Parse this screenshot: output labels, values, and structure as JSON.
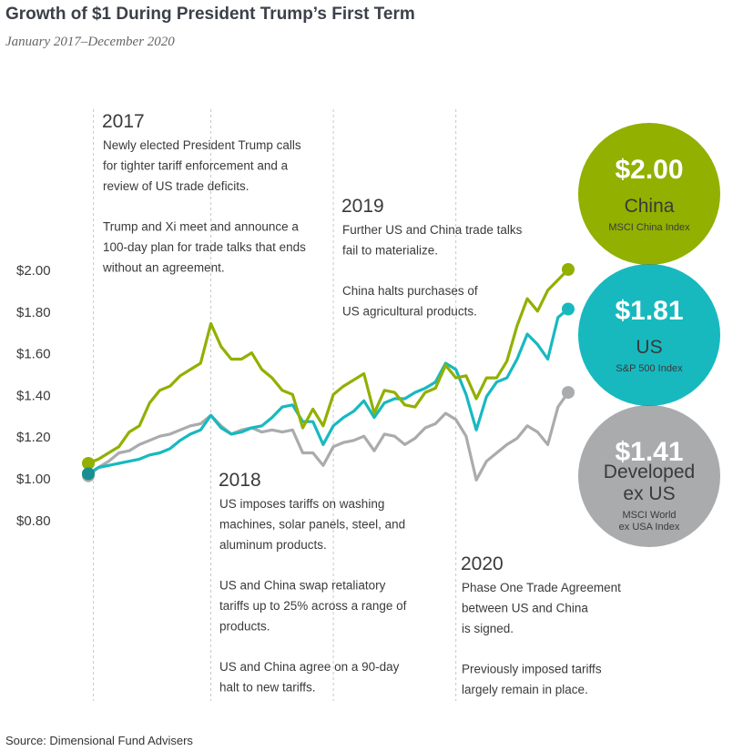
{
  "title": "Growth of $1 During President Trump’s First Term",
  "subtitle": "January 2017–December 2020",
  "source": "Source: Dimensional Fund Advisers",
  "colors": {
    "china": "#91b000",
    "us": "#17b9bf",
    "developed": "#a9abad",
    "divider": "#c8c8c8",
    "text": "#3a3a3a"
  },
  "chart_data": {
    "type": "line",
    "y_tick_labels": [
      "$2.00",
      "$1.80",
      "$1.60",
      "$1.40",
      "$1.20",
      "$1.00",
      "$0.80"
    ],
    "y_ticks": [
      2.0,
      1.8,
      1.6,
      1.4,
      1.2,
      1.0,
      0.8
    ],
    "ylim": [
      0.8,
      2.0
    ],
    "x_start": "2017-01",
    "x_end": "2020-12",
    "series": [
      {
        "key": "china",
        "values": [
          1.07,
          1.09,
          1.12,
          1.15,
          1.22,
          1.25,
          1.36,
          1.42,
          1.44,
          1.49,
          1.52,
          1.55,
          1.74,
          1.63,
          1.57,
          1.57,
          1.6,
          1.52,
          1.48,
          1.42,
          1.4,
          1.24,
          1.33,
          1.25,
          1.4,
          1.44,
          1.47,
          1.5,
          1.31,
          1.42,
          1.41,
          1.35,
          1.34,
          1.41,
          1.43,
          1.54,
          1.48,
          1.49,
          1.38,
          1.48,
          1.48,
          1.56,
          1.73,
          1.86,
          1.8,
          1.9,
          1.95,
          2.0
        ]
      },
      {
        "key": "us",
        "values": [
          1.02,
          1.05,
          1.06,
          1.07,
          1.08,
          1.09,
          1.11,
          1.12,
          1.14,
          1.18,
          1.21,
          1.23,
          1.3,
          1.24,
          1.21,
          1.22,
          1.24,
          1.25,
          1.29,
          1.34,
          1.35,
          1.27,
          1.27,
          1.16,
          1.25,
          1.29,
          1.32,
          1.37,
          1.29,
          1.36,
          1.38,
          1.38,
          1.41,
          1.43,
          1.46,
          1.55,
          1.52,
          1.4,
          1.23,
          1.39,
          1.46,
          1.48,
          1.57,
          1.69,
          1.64,
          1.57,
          1.77,
          1.81
        ]
      },
      {
        "key": "developed",
        "values": [
          1.01,
          1.05,
          1.08,
          1.12,
          1.13,
          1.16,
          1.18,
          1.2,
          1.21,
          1.23,
          1.25,
          1.26,
          1.3,
          1.25,
          1.21,
          1.23,
          1.24,
          1.22,
          1.23,
          1.22,
          1.23,
          1.12,
          1.12,
          1.06,
          1.15,
          1.17,
          1.18,
          1.2,
          1.13,
          1.21,
          1.2,
          1.16,
          1.19,
          1.24,
          1.26,
          1.31,
          1.28,
          1.2,
          0.99,
          1.08,
          1.12,
          1.16,
          1.19,
          1.25,
          1.22,
          1.16,
          1.34,
          1.41
        ]
      }
    ],
    "bubbles": [
      {
        "key": "china",
        "value": "$2.00",
        "name_lines": [
          "China"
        ],
        "index_lines": [
          "MSCI China Index"
        ],
        "text_color": "#3a3a3a"
      },
      {
        "key": "us",
        "value": "$1.81",
        "name_lines": [
          "US"
        ],
        "index_lines": [
          "S&P 500 Index"
        ],
        "text_color": "#3a3a3a"
      },
      {
        "key": "developed",
        "value": "$1.41",
        "name_lines": [
          "Developed",
          "ex US"
        ],
        "index_lines": [
          "MSCI World",
          "ex USA Index"
        ],
        "text_color": "#3a3a3a"
      }
    ],
    "annotations": [
      {
        "year": "2017",
        "lines": [
          "Newly elected President Trump calls",
          "for tighter tariff enforcement and a",
          "review of US trade deficits.",
          "",
          "Trump and Xi meet and announce a",
          "100-day plan for trade talks that ends",
          "without an agreement."
        ]
      },
      {
        "year": "2018",
        "lines": [
          "US imposes tariffs on washing",
          "machines, solar panels, steel, and",
          "aluminum products.",
          "",
          "US and China swap retaliatory",
          "tariffs up to 25% across a range of",
          "products.",
          "",
          "US and China agree on a 90-day",
          "halt to new tariffs."
        ]
      },
      {
        "year": "2019",
        "lines": [
          "Further US and China trade talks",
          "fail to materialize.",
          "",
          "China halts purchases of",
          "US agricultural products."
        ]
      },
      {
        "year": "2020",
        "lines": [
          "Phase One Trade Agreement",
          "between US and China",
          "is signed.",
          "",
          "Previously imposed tariffs",
          "largely remain in place."
        ]
      }
    ]
  }
}
